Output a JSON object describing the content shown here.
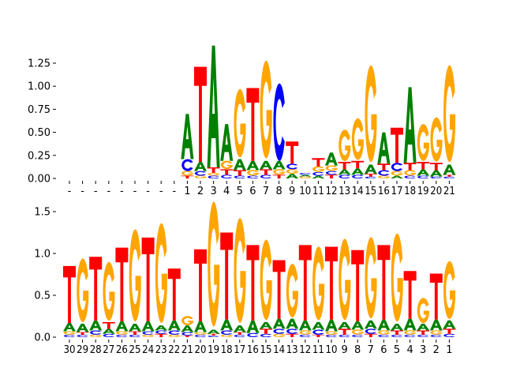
{
  "colors": {
    "A": "#008000",
    "C": "#0000ff",
    "G": "#ffa500",
    "T": "#ff0000"
  },
  "chart_data": [
    {
      "type": "sequence-logo",
      "ylabel": "",
      "ylim": [
        0,
        1.45
      ],
      "yticks": [
        "0.00",
        "0.25",
        "0.50",
        "0.75",
        "1.00",
        "1.25"
      ],
      "ytick_values": [
        0,
        0.25,
        0.5,
        0.75,
        1.0,
        1.25
      ],
      "positions": [
        "-",
        "-",
        "-",
        "-",
        "-",
        "-",
        "-",
        "-",
        "-",
        "1",
        "2",
        "3",
        "4",
        "5",
        "6",
        "7",
        "8",
        "9",
        "10",
        "11",
        "12",
        "13",
        "14",
        "15",
        "16",
        "17",
        "18",
        "19",
        "20",
        "21"
      ],
      "stacks": [
        [],
        [],
        [],
        [],
        [],
        [],
        [],
        [],
        [],
        [
          [
            "T",
            0.03
          ],
          [
            "G",
            0.05
          ],
          [
            "C",
            0.13
          ],
          [
            "A",
            0.49
          ]
        ],
        [
          [
            "G",
            0.03
          ],
          [
            "C",
            0.05
          ],
          [
            "A",
            0.1
          ],
          [
            "T",
            1.03
          ]
        ],
        [
          [
            "C",
            0.03
          ],
          [
            "G",
            0.03
          ],
          [
            "T",
            0.06
          ],
          [
            "A",
            1.32
          ]
        ],
        [
          [
            "C",
            0.04
          ],
          [
            "T",
            0.06
          ],
          [
            "G",
            0.09
          ],
          [
            "A",
            0.4
          ]
        ],
        [
          [
            "C",
            0.03
          ],
          [
            "T",
            0.06
          ],
          [
            "A",
            0.12
          ],
          [
            "G",
            0.74
          ]
        ],
        [
          [
            "C",
            0.03
          ],
          [
            "G",
            0.06
          ],
          [
            "A",
            0.1
          ],
          [
            "T",
            0.79
          ]
        ],
        [
          [
            "C",
            0.04
          ],
          [
            "T",
            0.06
          ],
          [
            "A",
            0.09
          ],
          [
            "G",
            1.06
          ]
        ],
        [
          [
            "T",
            0.04
          ],
          [
            "G",
            0.06
          ],
          [
            "A",
            0.09
          ],
          [
            "C",
            0.84
          ]
        ],
        [
          [
            "A",
            0.05
          ],
          [
            "G",
            0.05
          ],
          [
            "C",
            0.06
          ],
          [
            "T",
            0.24
          ]
        ],
        [
          [
            "G",
            0.02
          ],
          [
            "A",
            0.02
          ],
          [
            "C",
            0.02
          ]
        ],
        [
          [
            "A",
            0.03
          ],
          [
            "C",
            0.04
          ],
          [
            "G",
            0.06
          ],
          [
            "T",
            0.09
          ]
        ],
        [
          [
            "T",
            0.04
          ],
          [
            "C",
            0.04
          ],
          [
            "G",
            0.06
          ],
          [
            "A",
            0.14
          ]
        ],
        [
          [
            "C",
            0.04
          ],
          [
            "A",
            0.06
          ],
          [
            "T",
            0.08
          ],
          [
            "G",
            0.34
          ]
        ],
        [
          [
            "C",
            0.04
          ],
          [
            "A",
            0.07
          ],
          [
            "T",
            0.08
          ],
          [
            "G",
            0.45
          ]
        ],
        [
          [
            "C",
            0.02
          ],
          [
            "T",
            0.03
          ],
          [
            "A",
            0.1
          ],
          [
            "G",
            1.05
          ]
        ],
        [
          [
            "G",
            0.03
          ],
          [
            "C",
            0.06
          ],
          [
            "T",
            0.07
          ],
          [
            "A",
            0.34
          ]
        ],
        [
          [
            "A",
            0.03
          ],
          [
            "G",
            0.05
          ],
          [
            "C",
            0.09
          ],
          [
            "T",
            0.38
          ]
        ],
        [
          [
            "C",
            0.03
          ],
          [
            "G",
            0.06
          ],
          [
            "T",
            0.08
          ],
          [
            "A",
            0.82
          ]
        ],
        [
          [
            "C",
            0.03
          ],
          [
            "A",
            0.07
          ],
          [
            "T",
            0.08
          ],
          [
            "G",
            0.4
          ]
        ],
        [
          [
            "C",
            0.02
          ],
          [
            "A",
            0.07
          ],
          [
            "T",
            0.08
          ],
          [
            "G",
            0.48
          ]
        ],
        [
          [
            "C",
            0.02
          ],
          [
            "T",
            0.02
          ],
          [
            "A",
            0.11
          ],
          [
            "G",
            1.05
          ]
        ]
      ]
    },
    {
      "type": "sequence-logo",
      "ylabel": "",
      "ylim": [
        0,
        1.6
      ],
      "yticks": [
        "0.0",
        "0.5",
        "1.0",
        "1.5"
      ],
      "ytick_values": [
        0,
        0.5,
        1.0,
        1.5
      ],
      "positions": [
        "30",
        "29",
        "28",
        "27",
        "26",
        "25",
        "24",
        "23",
        "22",
        "21",
        "20",
        "19",
        "18",
        "17",
        "16",
        "15",
        "14",
        "13",
        "12",
        "11",
        "10",
        "9",
        "8",
        "7",
        "6",
        "5",
        "4",
        "3",
        "2",
        "1"
      ],
      "stacks": [
        [
          [
            "C",
            0.03
          ],
          [
            "G",
            0.04
          ],
          [
            "A",
            0.1
          ],
          [
            "T",
            0.68
          ]
        ],
        [
          [
            "C",
            0.03
          ],
          [
            "T",
            0.03
          ],
          [
            "A",
            0.1
          ],
          [
            "G",
            0.76
          ]
        ],
        [
          [
            "G",
            0.03
          ],
          [
            "C",
            0.05
          ],
          [
            "A",
            0.12
          ],
          [
            "T",
            0.76
          ]
        ],
        [
          [
            "C",
            0.04
          ],
          [
            "A",
            0.06
          ],
          [
            "T",
            0.08
          ],
          [
            "G",
            0.7
          ]
        ],
        [
          [
            "C",
            0.03
          ],
          [
            "G",
            0.04
          ],
          [
            "A",
            0.12
          ],
          [
            "T",
            0.88
          ]
        ],
        [
          [
            "C",
            0.03
          ],
          [
            "T",
            0.04
          ],
          [
            "A",
            0.09
          ],
          [
            "G",
            1.1
          ]
        ],
        [
          [
            "G",
            0.03
          ],
          [
            "C",
            0.04
          ],
          [
            "A",
            0.12
          ],
          [
            "T",
            1.0
          ]
        ],
        [
          [
            "T",
            0.04
          ],
          [
            "C",
            0.04
          ],
          [
            "A",
            0.06
          ],
          [
            "G",
            1.19
          ]
        ],
        [
          [
            "G",
            0.03
          ],
          [
            "C",
            0.05
          ],
          [
            "A",
            0.12
          ],
          [
            "T",
            0.62
          ]
        ],
        [
          [
            "T",
            0.02
          ],
          [
            "C",
            0.04
          ],
          [
            "A",
            0.08
          ],
          [
            "G",
            0.11
          ]
        ],
        [
          [
            "C",
            0.03
          ],
          [
            "G",
            0.03
          ],
          [
            "A",
            0.13
          ],
          [
            "T",
            0.86
          ]
        ],
        [
          [
            "C",
            0.02
          ],
          [
            "T",
            0.02
          ],
          [
            "A",
            0.05
          ],
          [
            "G",
            1.49
          ]
        ],
        [
          [
            "G",
            0.03
          ],
          [
            "C",
            0.05
          ],
          [
            "A",
            0.13
          ],
          [
            "T",
            1.04
          ]
        ],
        [
          [
            "C",
            0.03
          ],
          [
            "T",
            0.03
          ],
          [
            "A",
            0.08
          ],
          [
            "G",
            1.25
          ]
        ],
        [
          [
            "C",
            0.05
          ],
          [
            "A",
            0.15
          ],
          [
            "T",
            0.9
          ]
        ],
        [
          [
            "C",
            0.04
          ],
          [
            "T",
            0.06
          ],
          [
            "A",
            0.08
          ],
          [
            "G",
            0.96
          ]
        ],
        [
          [
            "G",
            0.04
          ],
          [
            "C",
            0.06
          ],
          [
            "A",
            0.12
          ],
          [
            "T",
            0.7
          ]
        ],
        [
          [
            "T",
            0.04
          ],
          [
            "C",
            0.06
          ],
          [
            "A",
            0.12
          ],
          [
            "G",
            0.64
          ]
        ],
        [
          [
            "C",
            0.03
          ],
          [
            "G",
            0.05
          ],
          [
            "A",
            0.12
          ],
          [
            "T",
            0.9
          ]
        ],
        [
          [
            "T",
            0.03
          ],
          [
            "C",
            0.06
          ],
          [
            "A",
            0.09
          ],
          [
            "G",
            0.88
          ]
        ],
        [
          [
            "C",
            0.03
          ],
          [
            "G",
            0.04
          ],
          [
            "A",
            0.14
          ],
          [
            "T",
            0.87
          ]
        ],
        [
          [
            "C",
            0.03
          ],
          [
            "T",
            0.07
          ],
          [
            "A",
            0.08
          ],
          [
            "G",
            0.97
          ]
        ],
        [
          [
            "C",
            0.03
          ],
          [
            "G",
            0.06
          ],
          [
            "A",
            0.1
          ],
          [
            "T",
            0.85
          ]
        ],
        [
          [
            "T",
            0.04
          ],
          [
            "C",
            0.06
          ],
          [
            "A",
            0.1
          ],
          [
            "G",
            0.97
          ]
        ],
        [
          [
            "C",
            0.03
          ],
          [
            "G",
            0.05
          ],
          [
            "A",
            0.13
          ],
          [
            "T",
            0.89
          ]
        ],
        [
          [
            "C",
            0.03
          ],
          [
            "T",
            0.05
          ],
          [
            "A",
            0.08
          ],
          [
            "G",
            1.05
          ]
        ],
        [
          [
            "C",
            0.03
          ],
          [
            "G",
            0.05
          ],
          [
            "A",
            0.14
          ],
          [
            "T",
            0.57
          ]
        ],
        [
          [
            "C",
            0.03
          ],
          [
            "T",
            0.05
          ],
          [
            "A",
            0.08
          ],
          [
            "G",
            0.3
          ]
        ],
        [
          [
            "C",
            0.03
          ],
          [
            "G",
            0.05
          ],
          [
            "A",
            0.13
          ],
          [
            "T",
            0.55
          ]
        ],
        [
          [
            "C",
            0.04
          ],
          [
            "T",
            0.06
          ],
          [
            "A",
            0.1
          ],
          [
            "G",
            0.69
          ]
        ]
      ]
    }
  ]
}
